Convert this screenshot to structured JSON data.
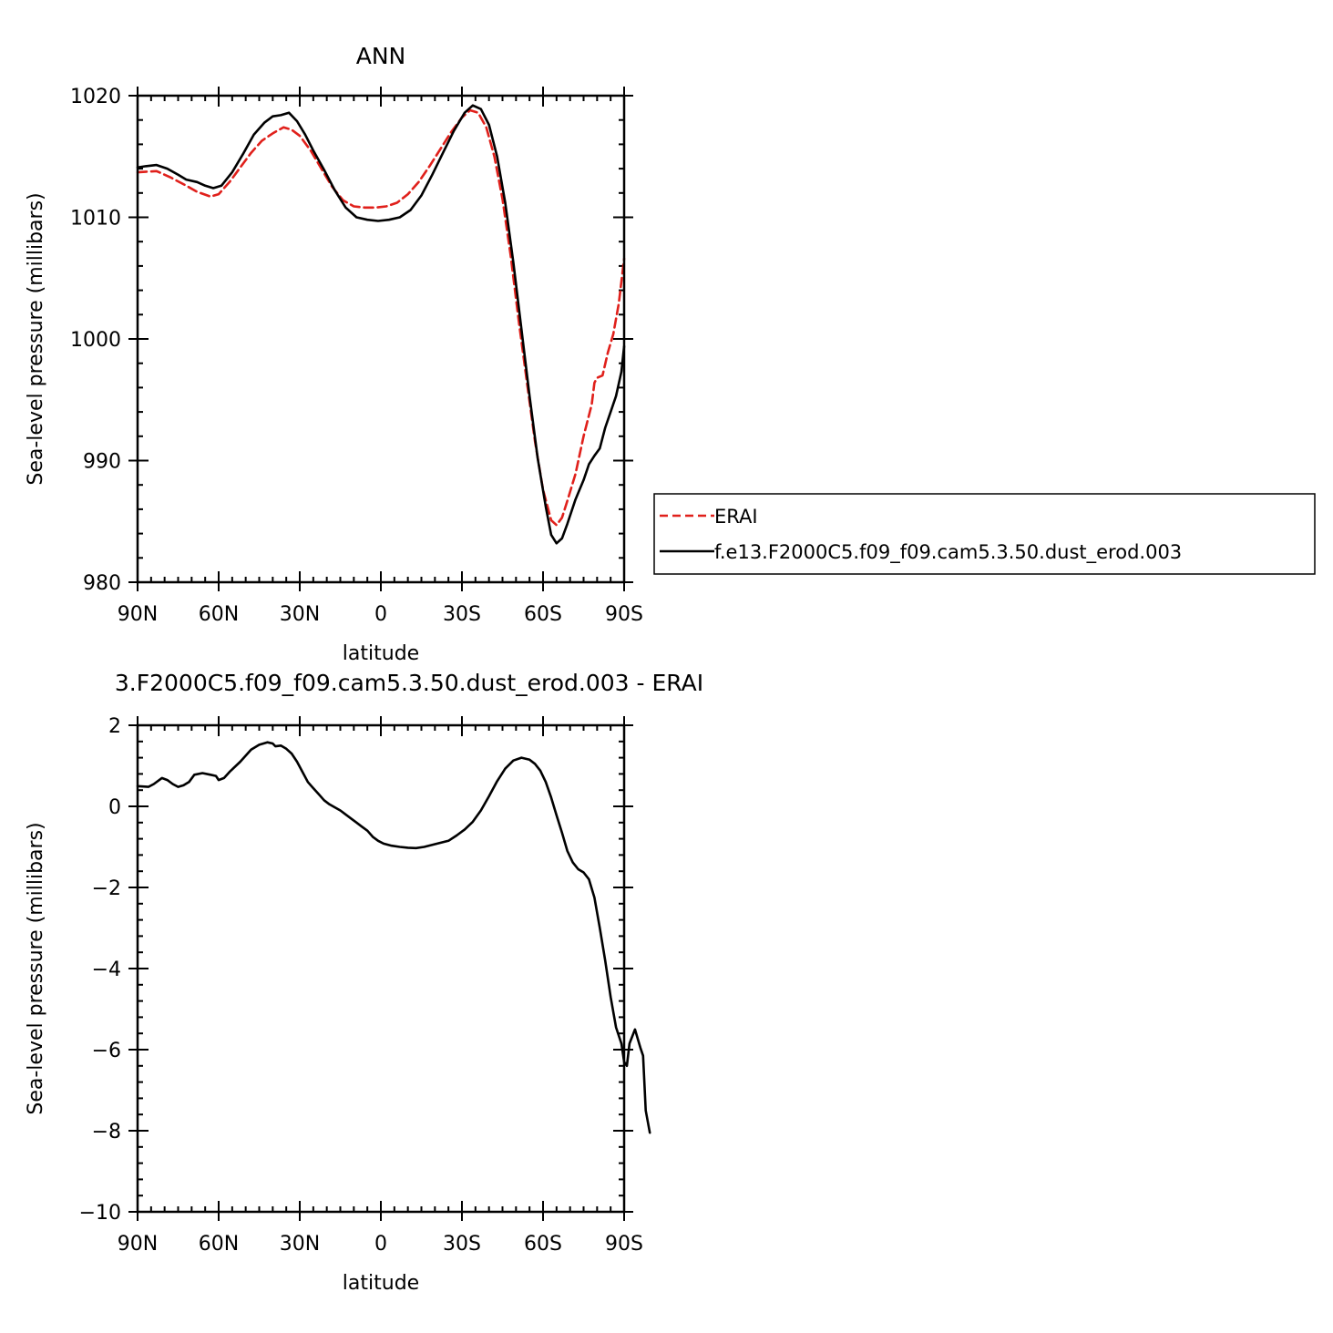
{
  "chart_data": [
    {
      "type": "line",
      "title": "ANN",
      "xlabel": "latitude",
      "ylabel": "Sea-level pressure (millibars)",
      "xlim": [
        90,
        -90
      ],
      "ylim": [
        980,
        1020
      ],
      "xticks": [
        {
          "value": 90,
          "label": "90N"
        },
        {
          "value": 60,
          "label": "60N"
        },
        {
          "value": 30,
          "label": "30N"
        },
        {
          "value": 0,
          "label": "0"
        },
        {
          "value": -30,
          "label": "30S"
        },
        {
          "value": -60,
          "label": "60S"
        },
        {
          "value": -90,
          "label": "90S"
        }
      ],
      "yticks": [
        {
          "value": 980,
          "label": "980"
        },
        {
          "value": 990,
          "label": "990"
        },
        {
          "value": 1000,
          "label": "1000"
        },
        {
          "value": 1010,
          "label": "1010"
        },
        {
          "value": 1020,
          "label": "1020"
        }
      ],
      "legend_position": "right",
      "series": [
        {
          "name": "ERAI",
          "color": "#e0201b",
          "dash": "dashed",
          "points": [
            [
              90,
              1013.7
            ],
            [
              83,
              1013.8
            ],
            [
              78,
              1013.3
            ],
            [
              72,
              1012.6
            ],
            [
              68,
              1012.1
            ],
            [
              63,
              1011.7
            ],
            [
              60,
              1011.9
            ],
            [
              56,
              1012.9
            ],
            [
              52,
              1014.1
            ],
            [
              48,
              1015.3
            ],
            [
              44,
              1016.3
            ],
            [
              40,
              1016.9
            ],
            [
              36,
              1017.4
            ],
            [
              33,
              1017.2
            ],
            [
              30,
              1016.7
            ],
            [
              26,
              1015.5
            ],
            [
              22,
              1014.0
            ],
            [
              18,
              1012.5
            ],
            [
              14,
              1011.4
            ],
            [
              10,
              1010.9
            ],
            [
              6,
              1010.8
            ],
            [
              2,
              1010.8
            ],
            [
              -2,
              1010.9
            ],
            [
              -6,
              1011.2
            ],
            [
              -10,
              1011.9
            ],
            [
              -14,
              1012.9
            ],
            [
              -18,
              1014.2
            ],
            [
              -22,
              1015.6
            ],
            [
              -26,
              1017.0
            ],
            [
              -30,
              1018.2
            ],
            [
              -33,
              1018.8
            ],
            [
              -36,
              1018.6
            ],
            [
              -39,
              1017.4
            ],
            [
              -42,
              1015.0
            ],
            [
              -45,
              1011.5
            ],
            [
              -48,
              1006.9
            ],
            [
              -51,
              1001.5
            ],
            [
              -54,
              996.5
            ],
            [
              -57,
              991.6
            ],
            [
              -60,
              987.6
            ],
            [
              -63,
              985.1
            ],
            [
              -65,
              984.7
            ],
            [
              -67,
              985.3
            ],
            [
              -69,
              986.7
            ],
            [
              -72,
              988.9
            ],
            [
              -75,
              992.0
            ],
            [
              -78,
              994.6
            ],
            [
              -79,
              996.4
            ],
            [
              -80,
              996.8
            ],
            [
              -82,
              997.0
            ],
            [
              -84,
              998.9
            ],
            [
              -86,
              1000.4
            ],
            [
              -88,
              1002.9
            ],
            [
              -90,
              1006.6
            ]
          ]
        },
        {
          "name": "f.e13.F2000C5.f09_f09.cam5.3.50.dust_erod.003",
          "color": "#000000",
          "dash": "solid",
          "points": [
            [
              90,
              1014.1
            ],
            [
              87,
              1014.2
            ],
            [
              83,
              1014.3
            ],
            [
              79,
              1014.0
            ],
            [
              75,
              1013.5
            ],
            [
              72,
              1013.1
            ],
            [
              68,
              1012.9
            ],
            [
              65,
              1012.6
            ],
            [
              62,
              1012.4
            ],
            [
              59,
              1012.6
            ],
            [
              55,
              1013.7
            ],
            [
              51,
              1015.2
            ],
            [
              47,
              1016.8
            ],
            [
              43,
              1017.8
            ],
            [
              40,
              1018.3
            ],
            [
              37,
              1018.4
            ],
            [
              34,
              1018.6
            ],
            [
              31,
              1017.9
            ],
            [
              28,
              1016.8
            ],
            [
              25,
              1015.5
            ],
            [
              21,
              1013.9
            ],
            [
              17,
              1012.2
            ],
            [
              13,
              1010.8
            ],
            [
              9,
              1010.0
            ],
            [
              5,
              1009.8
            ],
            [
              1,
              1009.7
            ],
            [
              -3,
              1009.8
            ],
            [
              -7,
              1010.0
            ],
            [
              -11,
              1010.6
            ],
            [
              -15,
              1011.8
            ],
            [
              -19,
              1013.5
            ],
            [
              -23,
              1015.3
            ],
            [
              -27,
              1017.1
            ],
            [
              -31,
              1018.6
            ],
            [
              -34,
              1019.2
            ],
            [
              -37,
              1018.9
            ],
            [
              -40,
              1017.6
            ],
            [
              -43,
              1015.0
            ],
            [
              -46,
              1011.2
            ],
            [
              -49,
              1006.3
            ],
            [
              -52,
              1000.8
            ],
            [
              -55,
              995.3
            ],
            [
              -58,
              990.2
            ],
            [
              -61,
              986.2
            ],
            [
              -63,
              983.9
            ],
            [
              -65,
              983.2
            ],
            [
              -67,
              983.6
            ],
            [
              -69,
              984.8
            ],
            [
              -72,
              986.8
            ],
            [
              -75,
              988.4
            ],
            [
              -77,
              989.7
            ],
            [
              -79,
              990.4
            ],
            [
              -81,
              991.0
            ],
            [
              -83,
              992.7
            ],
            [
              -85,
              994.0
            ],
            [
              -87,
              995.3
            ],
            [
              -89,
              997.3
            ],
            [
              -90,
              999.4
            ]
          ]
        }
      ]
    },
    {
      "type": "line",
      "title": "3.F2000C5.f09_f09.cam5.3.50.dust_erod.003 - ERAI",
      "xlabel": "latitude",
      "ylabel": "Sea-level pressure (millibars)",
      "xlim": [
        90,
        -90
      ],
      "ylim": [
        -10,
        2
      ],
      "xticks": [
        {
          "value": 90,
          "label": "90N"
        },
        {
          "value": 60,
          "label": "60N"
        },
        {
          "value": 30,
          "label": "30N"
        },
        {
          "value": 0,
          "label": "0"
        },
        {
          "value": -30,
          "label": "30S"
        },
        {
          "value": -60,
          "label": "60S"
        },
        {
          "value": -90,
          "label": "90S"
        }
      ],
      "yticks": [
        {
          "value": -10,
          "label": "-10"
        },
        {
          "value": -8,
          "label": "-8"
        },
        {
          "value": -6,
          "label": "-6"
        },
        {
          "value": -4,
          "label": "-4"
        },
        {
          "value": -2,
          "label": "-2"
        },
        {
          "value": 0,
          "label": "0"
        },
        {
          "value": 2,
          "label": "2"
        }
      ],
      "series": [
        {
          "color": "#000000",
          "dash": "solid",
          "points": [
            [
              90,
              0.5
            ],
            [
              86,
              0.48
            ],
            [
              84,
              0.55
            ],
            [
              81,
              0.7
            ],
            [
              79,
              0.65
            ],
            [
              77,
              0.55
            ],
            [
              75,
              0.48
            ],
            [
              73,
              0.52
            ],
            [
              71,
              0.6
            ],
            [
              69,
              0.78
            ],
            [
              66,
              0.82
            ],
            [
              63,
              0.78
            ],
            [
              61,
              0.75
            ],
            [
              60,
              0.65
            ],
            [
              58,
              0.7
            ],
            [
              56,
              0.85
            ],
            [
              52,
              1.1
            ],
            [
              48,
              1.4
            ],
            [
              45,
              1.52
            ],
            [
              42,
              1.58
            ],
            [
              40,
              1.55
            ],
            [
              39,
              1.48
            ],
            [
              37,
              1.5
            ],
            [
              35,
              1.42
            ],
            [
              33,
              1.3
            ],
            [
              31,
              1.1
            ],
            [
              29,
              0.85
            ],
            [
              27,
              0.6
            ],
            [
              25,
              0.45
            ],
            [
              23,
              0.3
            ],
            [
              21,
              0.15
            ],
            [
              19,
              0.05
            ],
            [
              15,
              -0.1
            ],
            [
              13,
              -0.2
            ],
            [
              11,
              -0.3
            ],
            [
              9,
              -0.4
            ],
            [
              7,
              -0.5
            ],
            [
              5,
              -0.6
            ],
            [
              3,
              -0.75
            ],
            [
              1,
              -0.85
            ],
            [
              -1,
              -0.92
            ],
            [
              -4,
              -0.97
            ],
            [
              -7,
              -1.0
            ],
            [
              -10,
              -1.02
            ],
            [
              -13,
              -1.03
            ],
            [
              -16,
              -1.0
            ],
            [
              -19,
              -0.95
            ],
            [
              -22,
              -0.9
            ],
            [
              -25,
              -0.85
            ],
            [
              -28,
              -0.72
            ],
            [
              -31,
              -0.57
            ],
            [
              -34,
              -0.38
            ],
            [
              -37,
              -0.1
            ],
            [
              -40,
              0.25
            ],
            [
              -43,
              0.62
            ],
            [
              -46,
              0.93
            ],
            [
              -49,
              1.13
            ],
            [
              -52,
              1.2
            ],
            [
              -55,
              1.15
            ],
            [
              -57,
              1.05
            ],
            [
              -59,
              0.88
            ],
            [
              -61,
              0.6
            ],
            [
              -63,
              0.22
            ],
            [
              -65,
              -0.22
            ],
            [
              -67,
              -0.65
            ],
            [
              -69,
              -1.1
            ],
            [
              -71,
              -1.38
            ],
            [
              -73,
              -1.55
            ],
            [
              -75,
              -1.63
            ],
            [
              -77,
              -1.8
            ],
            [
              -79,
              -2.25
            ],
            [
              -81,
              -3.0
            ],
            [
              -83,
              -3.8
            ],
            [
              -85,
              -4.7
            ],
            [
              -87,
              -5.45
            ],
            [
              -89,
              -5.85
            ],
            [
              -90,
              -6.3
            ],
            [
              -91,
              -6.4
            ],
            [
              -92,
              -5.85
            ],
            [
              -94,
              -5.5
            ],
            [
              -96,
              -5.95
            ],
            [
              -97,
              -6.15
            ],
            [
              -98,
              -7.5
            ],
            [
              -99.5,
              -8.05
            ]
          ]
        }
      ]
    }
  ]
}
